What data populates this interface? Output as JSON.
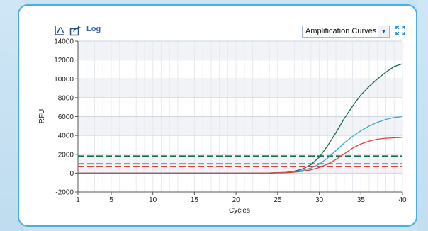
{
  "toolbar": {
    "log_label": "Log",
    "view_selected": "Amplification Curves",
    "icons": [
      "chart-line-icon",
      "export-icon",
      "dropdown-arrow-icon",
      "expand-icon"
    ]
  },
  "colors": {
    "frame": "#4aaee0",
    "series_green": "#1a6b4a",
    "series_blue": "#3aa9d6",
    "series_red": "#e0403a",
    "grid_major": "#cfd6de",
    "grid_minor": "#e6eaef",
    "band": "#f1f3f6"
  },
  "chart_data": {
    "type": "line",
    "xlabel": "Cycles",
    "ylabel": "RFU",
    "xlim": [
      1,
      40
    ],
    "ylim": [
      -2000,
      14000
    ],
    "x_ticks": [
      1,
      5,
      10,
      15,
      20,
      25,
      30,
      35,
      40
    ],
    "y_ticks": [
      -2000,
      0,
      2000,
      4000,
      6000,
      8000,
      10000,
      12000,
      14000
    ],
    "grid": true,
    "series": [
      {
        "color": "#1a6b4a",
        "x": [
          1,
          5,
          10,
          15,
          20,
          24,
          26,
          27,
          28,
          29,
          30,
          31,
          32,
          33,
          34,
          35,
          36,
          37,
          38,
          39,
          40
        ],
        "values": [
          0,
          0,
          0,
          0,
          0,
          20,
          80,
          200,
          450,
          900,
          1700,
          2900,
          4300,
          5800,
          7100,
          8300,
          9200,
          10000,
          10700,
          11300,
          11600
        ]
      },
      {
        "color": "#3aa9d6",
        "x": [
          1,
          5,
          10,
          15,
          20,
          24,
          26,
          27,
          28,
          29,
          30,
          31,
          32,
          33,
          34,
          35,
          36,
          37,
          38,
          39,
          40
        ],
        "values": [
          0,
          0,
          0,
          0,
          0,
          15,
          60,
          150,
          300,
          550,
          950,
          1600,
          2400,
          3200,
          3900,
          4500,
          5000,
          5400,
          5700,
          5900,
          6000
        ]
      },
      {
        "color": "#e0403a",
        "x": [
          1,
          5,
          10,
          15,
          20,
          24,
          26,
          27,
          28,
          29,
          30,
          31,
          32,
          33,
          34,
          35,
          36,
          37,
          38,
          39,
          40
        ],
        "values": [
          0,
          0,
          0,
          0,
          0,
          10,
          40,
          100,
          200,
          350,
          600,
          950,
          1450,
          2050,
          2650,
          3100,
          3400,
          3600,
          3700,
          3750,
          3800
        ]
      }
    ],
    "threshold_lines": [
      {
        "color": "#1a6b4a",
        "value": 1800
      },
      {
        "color": "#3aa9d6",
        "value": 1000
      },
      {
        "color": "#e0403a",
        "value": 700
      }
    ]
  }
}
